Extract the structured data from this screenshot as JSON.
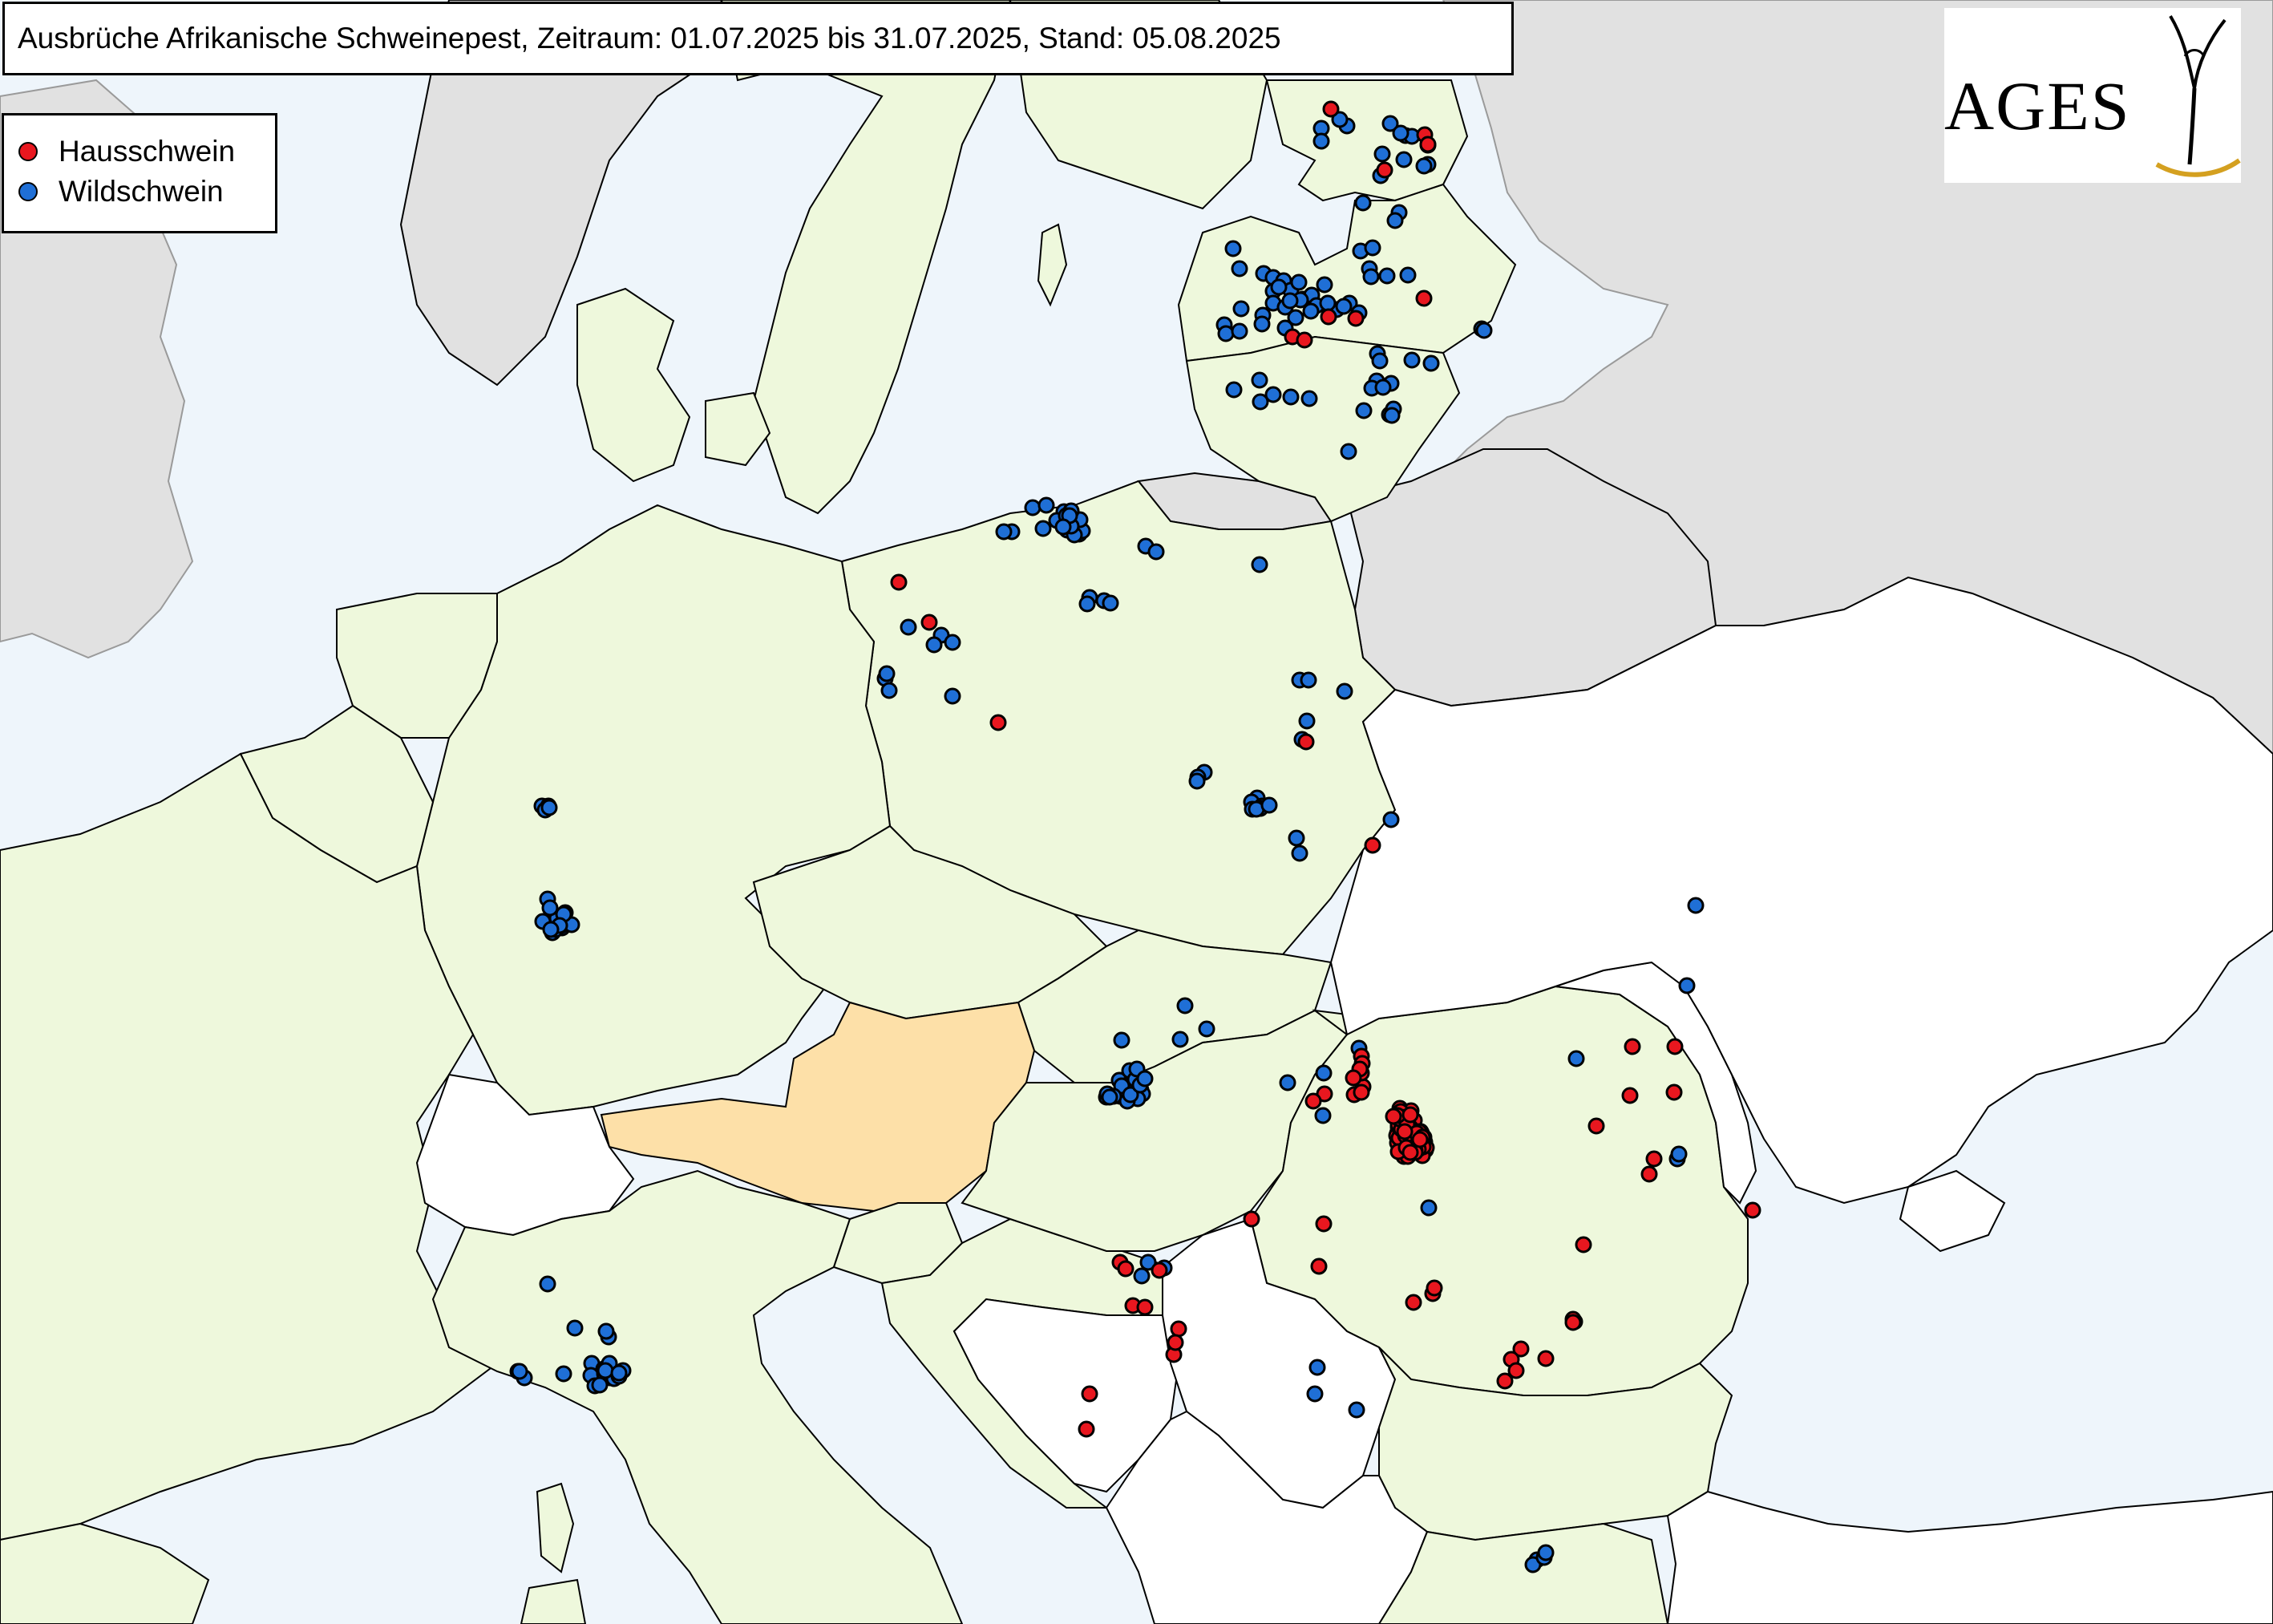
{
  "title": "Ausbrüche Afrikanische Schweinepest, Zeitraum: 01.07.2025 bis 31.07.2025, Stand: 05.08.2025",
  "legend": [
    {
      "label": "Hausschwein",
      "color": "#e8171f"
    },
    {
      "label": "Wildschwein",
      "color": "#1f6fd6"
    }
  ],
  "logo": {
    "text": "AGES",
    "accent": "#d4a020"
  },
  "colors": {
    "sea": "#eef5fb",
    "affected": "#eef8dc",
    "austria": "#fde0a8",
    "other": "#ffffff",
    "nonEU": "#e1e1e1",
    "border": "#000000"
  },
  "outbreaks": {
    "domestic_pig": [
      [
        1660,
        136
      ],
      [
        1727,
        212
      ],
      [
        1777,
        168
      ],
      [
        1781,
        180
      ],
      [
        1691,
        397
      ],
      [
        1657,
        395
      ],
      [
        1612,
        420
      ],
      [
        1776,
        372
      ],
      [
        1627,
        424
      ],
      [
        1121,
        726
      ],
      [
        1159,
        776
      ],
      [
        1245,
        901
      ],
      [
        1629,
        925
      ],
      [
        1712,
        1054
      ],
      [
        1698,
        1317
      ],
      [
        1700,
        1355
      ],
      [
        1689,
        1365
      ],
      [
        1652,
        1364
      ],
      [
        1638,
        1373
      ],
      [
        1699,
        1326
      ],
      [
        1698,
        1338
      ],
      [
        1744,
        1406
      ],
      [
        1752,
        1390
      ],
      [
        1746,
        1382
      ],
      [
        1757,
        1386
      ],
      [
        1743,
        1413
      ],
      [
        1778,
        1434
      ],
      [
        1746,
        1420
      ],
      [
        1651,
        1526
      ],
      [
        1750,
        1416
      ],
      [
        1773,
        1434
      ],
      [
        1760,
        1385
      ],
      [
        1777,
        1424
      ],
      [
        1758,
        1396
      ],
      [
        1764,
        1419
      ],
      [
        1759,
        1425
      ],
      [
        1747,
        1386
      ],
      [
        1752,
        1441
      ],
      [
        1774,
        1428
      ],
      [
        1767,
        1413
      ],
      [
        1754,
        1406
      ],
      [
        1763,
        1429
      ],
      [
        1756,
        1410
      ],
      [
        1763,
        1407
      ],
      [
        1745,
        1410
      ],
      [
        1754,
        1393
      ],
      [
        1742,
        1416
      ],
      [
        1767,
        1427
      ],
      [
        1759,
        1424
      ],
      [
        1751,
        1442
      ],
      [
        1778,
        1430
      ],
      [
        1744,
        1404
      ],
      [
        1756,
        1435
      ],
      [
        1742,
        1391
      ],
      [
        1772,
        1411
      ],
      [
        1755,
        1421
      ],
      [
        1757,
        1394
      ],
      [
        1747,
        1430
      ],
      [
        1773,
        1413
      ],
      [
        1744,
        1402
      ],
      [
        1752,
        1420
      ],
      [
        1766,
        1431
      ],
      [
        1758,
        1407
      ],
      [
        1755,
        1416
      ],
      [
        1777,
        1434
      ],
      [
        1763,
        1437
      ],
      [
        1743,
        1425
      ],
      [
        1779,
        1431
      ],
      [
        1763,
        1418
      ],
      [
        1748,
        1393
      ],
      [
        1764,
        1397
      ],
      [
        1756,
        1414
      ],
      [
        1774,
        1441
      ],
      [
        1747,
        1414
      ],
      [
        1759,
        1406
      ],
      [
        1776,
        1418
      ],
      [
        1765,
        1419
      ],
      [
        1750,
        1424
      ],
      [
        1770,
        1411
      ],
      [
        1757,
        1422
      ],
      [
        1762,
        1434
      ],
      [
        1745,
        1419
      ],
      [
        1762,
        1430
      ],
      [
        1775,
        1430
      ],
      [
        1756,
        1442
      ],
      [
        1748,
        1408
      ],
      [
        1744,
        1436
      ],
      [
        1770,
        1419
      ],
      [
        1756,
        1405
      ],
      [
        1753,
        1416
      ],
      [
        1761,
        1428
      ],
      [
        1764,
        1424
      ],
      [
        1769,
        1433
      ],
      [
        1745,
        1395
      ],
      [
        1760,
        1414
      ],
      [
        1755,
        1402
      ],
      [
        2089,
        1305
      ],
      [
        2036,
        1305
      ],
      [
        1991,
        1404
      ],
      [
        2033,
        1366
      ],
      [
        2063,
        1445
      ],
      [
        2057,
        1464
      ],
      [
        1975,
        1552
      ],
      [
        1787,
        1613
      ],
      [
        1964,
        1648
      ],
      [
        1763,
        1624
      ],
      [
        1789,
        1606
      ],
      [
        1962,
        1645
      ],
      [
        2186,
        1509
      ],
      [
        2088,
        1362
      ],
      [
        1696,
        1333
      ],
      [
        1688,
        1344
      ],
      [
        1698,
        1362
      ],
      [
        1743,
        1391
      ],
      [
        1764,
        1430
      ],
      [
        1767,
        1413
      ],
      [
        1561,
        1520
      ],
      [
        1645,
        1579
      ],
      [
        1765,
        1435
      ],
      [
        1397,
        1574
      ],
      [
        1404,
        1582
      ],
      [
        1446,
        1584
      ],
      [
        1413,
        1628
      ],
      [
        1428,
        1630
      ],
      [
        1470,
        1657
      ],
      [
        1464,
        1689
      ],
      [
        1466,
        1674
      ],
      [
        1897,
        1682
      ],
      [
        1885,
        1695
      ],
      [
        1891,
        1709
      ],
      [
        1877,
        1722
      ],
      [
        1928,
        1694
      ],
      [
        1962,
        1649
      ],
      [
        1359,
        1738
      ],
      [
        1355,
        1782
      ],
      [
        1738,
        1392
      ],
      [
        1765,
        1437
      ],
      [
        1754,
        1431
      ],
      [
        1759,
        1437
      ],
      [
        1774,
        1418
      ],
      [
        1759,
        1390
      ],
      [
        1771,
        1421
      ],
      [
        1752,
        1411
      ]
    ],
    "wild_boar": [
      [
        1648,
        160
      ],
      [
        1648,
        176
      ],
      [
        1680,
        157
      ],
      [
        1671,
        149
      ],
      [
        1734,
        154
      ],
      [
        1753,
        169
      ],
      [
        1751,
        199
      ],
      [
        1724,
        192
      ],
      [
        1781,
        205
      ],
      [
        1722,
        219
      ],
      [
        1700,
        253
      ],
      [
        1745,
        265
      ],
      [
        1740,
        275
      ],
      [
        1781,
        181
      ],
      [
        1776,
        207
      ],
      [
        1761,
        170
      ],
      [
        1747,
        166
      ],
      [
        1538,
        310
      ],
      [
        1546,
        335
      ],
      [
        1576,
        341
      ],
      [
        1588,
        346
      ],
      [
        1601,
        350
      ],
      [
        1588,
        363
      ],
      [
        1610,
        362
      ],
      [
        1625,
        373
      ],
      [
        1636,
        368
      ],
      [
        1652,
        355
      ],
      [
        1642,
        381
      ],
      [
        1667,
        386
      ],
      [
        1683,
        378
      ],
      [
        1695,
        390
      ],
      [
        1676,
        382
      ],
      [
        1656,
        378
      ],
      [
        1588,
        378
      ],
      [
        1575,
        393
      ],
      [
        1548,
        385
      ],
      [
        1527,
        405
      ],
      [
        1529,
        416
      ],
      [
        1546,
        413
      ],
      [
        1603,
        383
      ],
      [
        1574,
        404
      ],
      [
        1603,
        409
      ],
      [
        1616,
        396
      ],
      [
        1635,
        388
      ],
      [
        1622,
        374
      ],
      [
        1609,
        375
      ],
      [
        1595,
        358
      ],
      [
        1620,
        352
      ],
      [
        1697,
        313
      ],
      [
        1712,
        309
      ],
      [
        1708,
        335
      ],
      [
        1730,
        344
      ],
      [
        1756,
        343
      ],
      [
        1710,
        345
      ],
      [
        1761,
        449
      ],
      [
        1785,
        453
      ],
      [
        1848,
        410
      ],
      [
        1851,
        412
      ],
      [
        1718,
        441
      ],
      [
        1721,
        450
      ],
      [
        1539,
        486
      ],
      [
        1571,
        474
      ],
      [
        1572,
        501
      ],
      [
        1588,
        492
      ],
      [
        1610,
        495
      ],
      [
        1633,
        497
      ],
      [
        1717,
        475
      ],
      [
        1711,
        484
      ],
      [
        1735,
        478
      ],
      [
        1701,
        512
      ],
      [
        1733,
        517
      ],
      [
        1738,
        510
      ],
      [
        1736,
        518
      ],
      [
        1682,
        563
      ],
      [
        1725,
        483
      ],
      [
        1288,
        633
      ],
      [
        1305,
        630
      ],
      [
        1327,
        638
      ],
      [
        1340,
        658
      ],
      [
        1346,
        666
      ],
      [
        1331,
        661
      ],
      [
        1301,
        659
      ],
      [
        1350,
        662
      ],
      [
        1318,
        649
      ],
      [
        1347,
        648
      ],
      [
        1262,
        663
      ],
      [
        1252,
        663
      ],
      [
        1336,
        637
      ],
      [
        1330,
        643
      ],
      [
        1340,
        667
      ],
      [
        1336,
        656
      ],
      [
        1334,
        643
      ],
      [
        1326,
        657
      ],
      [
        1429,
        681
      ],
      [
        1442,
        688
      ],
      [
        1571,
        704
      ],
      [
        1359,
        745
      ],
      [
        1356,
        753
      ],
      [
        1377,
        749
      ],
      [
        1385,
        752
      ],
      [
        1133,
        782
      ],
      [
        1174,
        792
      ],
      [
        1188,
        801
      ],
      [
        1165,
        804
      ],
      [
        1104,
        846
      ],
      [
        1106,
        840
      ],
      [
        1109,
        861
      ],
      [
        1188,
        868
      ],
      [
        1621,
        848
      ],
      [
        1632,
        848
      ],
      [
        1630,
        899
      ],
      [
        1677,
        862
      ],
      [
        1624,
        922
      ],
      [
        1502,
        963
      ],
      [
        1494,
        969
      ],
      [
        1493,
        974
      ],
      [
        1568,
        995
      ],
      [
        1561,
        1000
      ],
      [
        1574,
        1005
      ],
      [
        1562,
        1009
      ],
      [
        1572,
        1008
      ],
      [
        1567,
        1009
      ],
      [
        1583,
        1004
      ],
      [
        1617,
        1045
      ],
      [
        1621,
        1064
      ],
      [
        1735,
        1022
      ],
      [
        2115,
        1129
      ],
      [
        2104,
        1229
      ],
      [
        676,
        1005
      ],
      [
        684,
        1005
      ],
      [
        680,
        1010
      ],
      [
        685,
        1007
      ],
      [
        686,
        1150
      ],
      [
        687,
        1148
      ],
      [
        683,
        1121
      ],
      [
        688,
        1140
      ],
      [
        698,
        1143
      ],
      [
        707,
        1150
      ],
      [
        701,
        1157
      ],
      [
        700,
        1154
      ],
      [
        695,
        1145
      ],
      [
        705,
        1138
      ],
      [
        689,
        1163
      ],
      [
        677,
        1149
      ],
      [
        713,
        1153
      ],
      [
        703,
        1140
      ],
      [
        693,
        1159
      ],
      [
        686,
        1132
      ],
      [
        698,
        1154
      ],
      [
        687,
        1159
      ],
      [
        1396,
        1347
      ],
      [
        1409,
        1335
      ],
      [
        1406,
        1353
      ],
      [
        1397,
        1367
      ],
      [
        1410,
        1366
      ],
      [
        1423,
        1359
      ],
      [
        1416,
        1346
      ],
      [
        1425,
        1364
      ],
      [
        1419,
        1370
      ],
      [
        1406,
        1373
      ],
      [
        1399,
        1354
      ],
      [
        1410,
        1365
      ],
      [
        1418,
        1333
      ],
      [
        1389,
        1367
      ],
      [
        1380,
        1368
      ],
      [
        1381,
        1364
      ],
      [
        1478,
        1254
      ],
      [
        1505,
        1283
      ],
      [
        1472,
        1296
      ],
      [
        1399,
        1297
      ],
      [
        1384,
        1368
      ],
      [
        1422,
        1353
      ],
      [
        1428,
        1345
      ],
      [
        1606,
        1350
      ],
      [
        1651,
        1338
      ],
      [
        1650,
        1391
      ],
      [
        1695,
        1307
      ],
      [
        1782,
        1506
      ],
      [
        1966,
        1320
      ],
      [
        2092,
        1445
      ],
      [
        1432,
        1574
      ],
      [
        683,
        1601
      ],
      [
        717,
        1656
      ],
      [
        738,
        1700
      ],
      [
        756,
        1714
      ],
      [
        646,
        1710
      ],
      [
        654,
        1718
      ],
      [
        648,
        1710
      ],
      [
        703,
        1713
      ],
      [
        737,
        1715
      ],
      [
        753,
        1707
      ],
      [
        742,
        1728
      ],
      [
        761,
        1718
      ],
      [
        761,
        1712
      ],
      [
        754,
        1713
      ],
      [
        777,
        1709
      ],
      [
        766,
        1719
      ],
      [
        760,
        1700
      ],
      [
        772,
        1716
      ],
      [
        755,
        1709
      ],
      [
        772,
        1712
      ],
      [
        759,
        1667
      ],
      [
        756,
        1660
      ],
      [
        748,
        1727
      ],
      [
        1424,
        1591
      ],
      [
        1452,
        1581
      ],
      [
        1692,
        1758
      ],
      [
        2094,
        1439
      ],
      [
        1640,
        1738
      ],
      [
        1643,
        1705
      ],
      [
        1917,
        1945
      ],
      [
        1912,
        1951
      ],
      [
        1926,
        1942
      ],
      [
        1928,
        1936
      ]
    ]
  }
}
